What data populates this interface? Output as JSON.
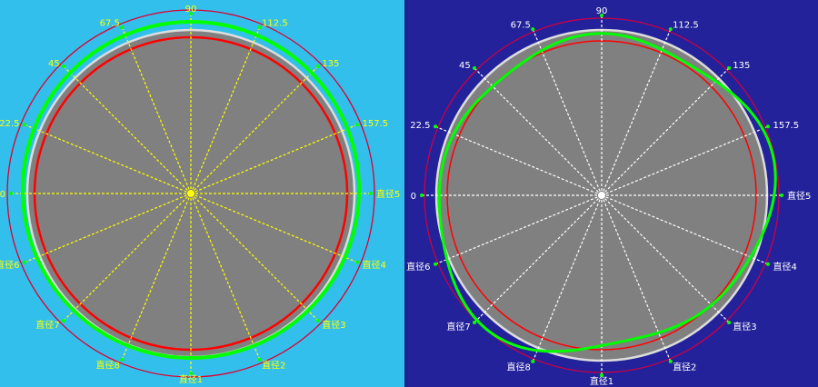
{
  "chart_data": [
    {
      "type": "polar",
      "angle_labels": [
        "0",
        "22.5",
        "45",
        "67.5",
        "90",
        "112.5",
        "135",
        "157.5",
        "直径5",
        "直径4",
        "直径3",
        "直径2",
        "直径1",
        "直径8",
        "直径7",
        "直径6"
      ],
      "background": "#33bfec",
      "spoke_color": "#ffff00",
      "label_color": "#ffff00",
      "series_color": "#00ff00",
      "limit_colors": [
        "#ff0000",
        "#dd0033"
      ],
      "disk_color": "#808080"
    },
    {
      "type": "polar",
      "angle_labels": [
        "0",
        "22.5",
        "45",
        "67.5",
        "90",
        "112.5",
        "135",
        "157.5",
        "直径5",
        "直径4",
        "直径3",
        "直径2",
        "直径1",
        "直径8",
        "直径7",
        "直径6"
      ],
      "background": "#23229a",
      "spoke_color": "#ffffff",
      "label_color": "#ffffff",
      "series_color": "#00ff00",
      "limit_colors": [
        "#ff0000",
        "#cc0044"
      ],
      "disk_color": "#808080"
    }
  ]
}
